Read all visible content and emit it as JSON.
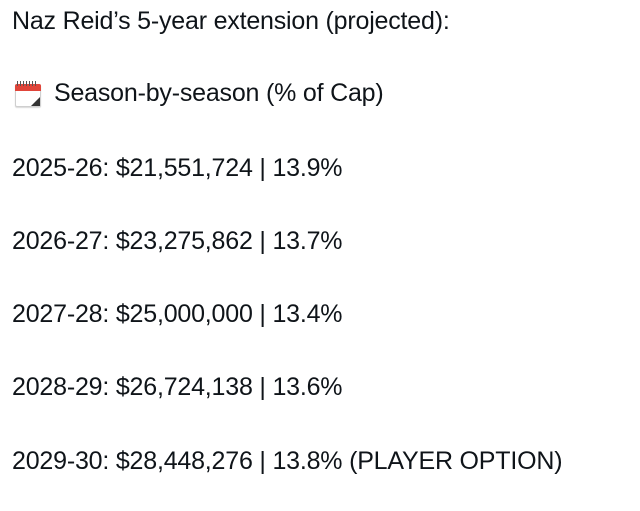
{
  "post": {
    "title": "Naz Reid’s 5-year extension (projected):",
    "subtitle_icon": "calendar-icon",
    "subtitle": "Season-by-season (% of Cap)",
    "seasons": [
      {
        "text": "2025-26: $21,551,724 | 13.9%"
      },
      {
        "text": "2026-27: $23,275,862 | 13.7%"
      },
      {
        "text": "2027-28: $25,000,000 | 13.4%"
      },
      {
        "text": "2028-29: $26,724,138 | 13.6%"
      },
      {
        "text": "2029-30: $28,448,276 | 13.8% (PLAYER OPTION)"
      }
    ]
  }
}
